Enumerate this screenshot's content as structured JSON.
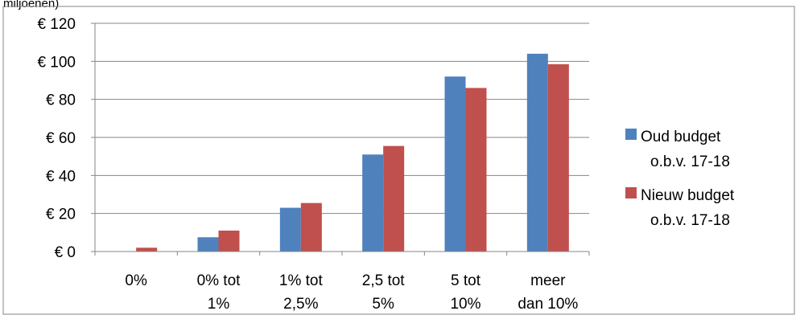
{
  "chart_data": {
    "type": "bar",
    "title_fragment": "miljoenen)",
    "categories": [
      [
        "0%"
      ],
      [
        "0% tot",
        "1%"
      ],
      [
        "1% tot",
        "2,5%"
      ],
      [
        "2,5 tot",
        "5%"
      ],
      [
        "5 tot",
        "10%"
      ],
      [
        "meer",
        "dan 10%"
      ]
    ],
    "series": [
      {
        "name_lines": [
          "Oud budget",
          "o.b.v. 17-18"
        ],
        "color": "#4F81BD",
        "values": [
          0,
          7.5,
          23,
          51,
          92,
          104
        ]
      },
      {
        "name_lines": [
          "Nieuw budget",
          "o.b.v. 17-18"
        ],
        "color": "#C0504D",
        "values": [
          2,
          11,
          25.5,
          55.5,
          86,
          98.5
        ]
      }
    ],
    "y_ticks": [
      "€ 0",
      "€ 20",
      "€ 40",
      "€ 60",
      "€ 80",
      "€ 100",
      "€ 120"
    ],
    "ylim": [
      0,
      120
    ],
    "grid": true,
    "legend_position": "right"
  }
}
